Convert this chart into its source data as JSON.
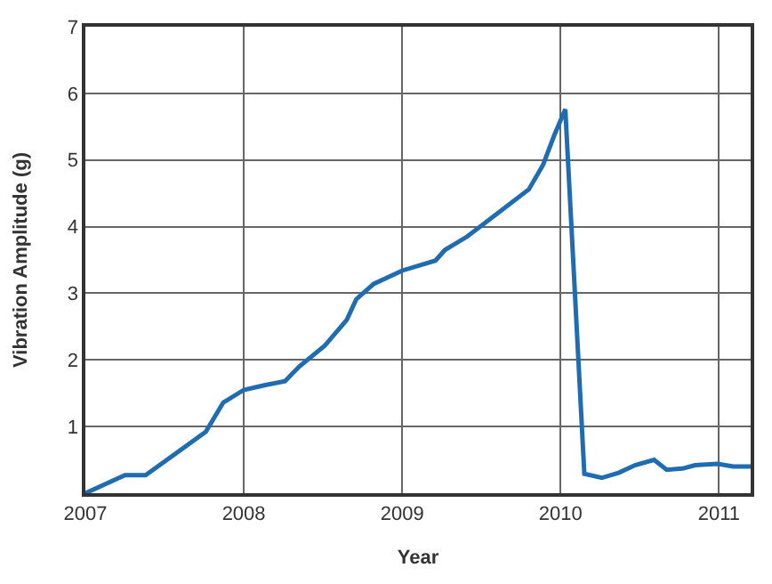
{
  "chart_data": {
    "type": "line",
    "xlabel": "Year",
    "ylabel": "Vibration Amplitude (g)",
    "xlim": [
      2007,
      2011.2
    ],
    "xticks": [
      2007,
      2008,
      2009,
      2010,
      2011
    ],
    "ylim": [
      0,
      7
    ],
    "yticks": [
      1,
      2,
      3,
      4,
      5,
      6,
      7
    ],
    "grid": true,
    "marker": "none",
    "line_style": "solid",
    "series": [
      {
        "color": "#1f6cb0",
        "x": [
          2007.0,
          2007.25,
          2007.38,
          2007.76,
          2007.87,
          2008.0,
          2008.13,
          2008.26,
          2008.35,
          2008.51,
          2008.65,
          2008.71,
          2008.82,
          2009.0,
          2009.21,
          2009.27,
          2009.41,
          2009.8,
          2009.89,
          2009.96,
          2010.03,
          2010.15,
          2010.26,
          2010.37,
          2010.47,
          2010.59,
          2010.67,
          2010.77,
          2010.85,
          2010.99,
          2011.09,
          2011.2
        ],
        "values": [
          0.0,
          0.27,
          0.27,
          0.92,
          1.36,
          1.55,
          1.62,
          1.68,
          1.9,
          2.21,
          2.6,
          2.91,
          3.14,
          3.34,
          3.49,
          3.65,
          3.85,
          4.56,
          4.93,
          5.37,
          5.76,
          0.29,
          0.23,
          0.31,
          0.42,
          0.5,
          0.35,
          0.37,
          0.42,
          0.44,
          0.4,
          0.4
        ]
      }
    ]
  }
}
